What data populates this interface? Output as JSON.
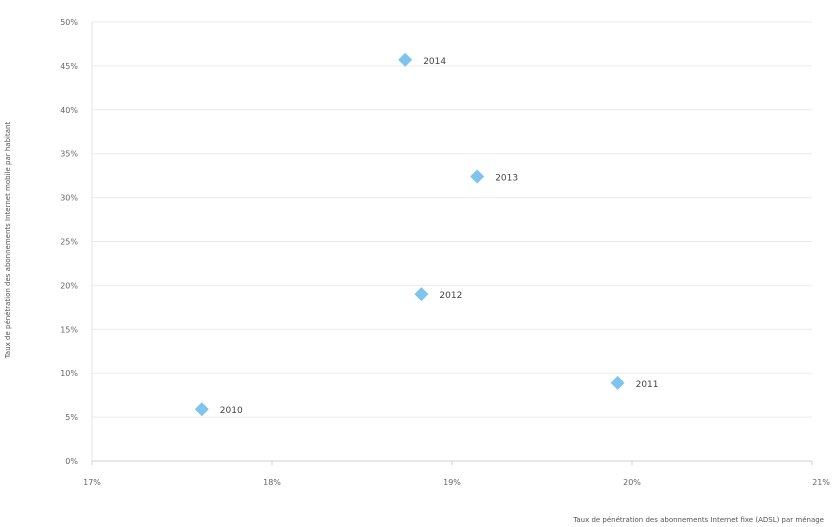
{
  "chart_data": {
    "type": "scatter",
    "title": "",
    "xlabel": "Taux de pénétration des abonnements Internet fixe (ADSL) par ménage",
    "ylabel": "Taux de pénétration des abonnements Internet mobile par habitant",
    "xlim": [
      0.17,
      0.21
    ],
    "ylim": [
      0,
      0.5
    ],
    "x_ticks": [
      {
        "value": 0.17,
        "label": "17%"
      },
      {
        "value": 0.18,
        "label": "18%"
      },
      {
        "value": 0.19,
        "label": "19%"
      },
      {
        "value": 0.2,
        "label": "20%"
      },
      {
        "value": 0.21,
        "label": "21%"
      }
    ],
    "y_ticks": [
      {
        "value": 0.0,
        "label": "0%"
      },
      {
        "value": 0.05,
        "label": "5%"
      },
      {
        "value": 0.1,
        "label": "10%"
      },
      {
        "value": 0.15,
        "label": "15%"
      },
      {
        "value": 0.2,
        "label": "20%"
      },
      {
        "value": 0.25,
        "label": "25%"
      },
      {
        "value": 0.3,
        "label": "30%"
      },
      {
        "value": 0.35,
        "label": "35%"
      },
      {
        "value": 0.4,
        "label": "40%"
      },
      {
        "value": 0.45,
        "label": "45%"
      },
      {
        "value": 0.5,
        "label": "50%"
      }
    ],
    "grid": true,
    "marker": "diamond",
    "marker_color": "#7fc4ec",
    "points": [
      {
        "label": "2010",
        "x": 0.1761,
        "y": 0.059
      },
      {
        "label": "2011",
        "x": 0.1992,
        "y": 0.089
      },
      {
        "label": "2012",
        "x": 0.1883,
        "y": 0.19
      },
      {
        "label": "2013",
        "x": 0.1914,
        "y": 0.324
      },
      {
        "label": "2014",
        "x": 0.1874,
        "y": 0.457
      }
    ]
  }
}
